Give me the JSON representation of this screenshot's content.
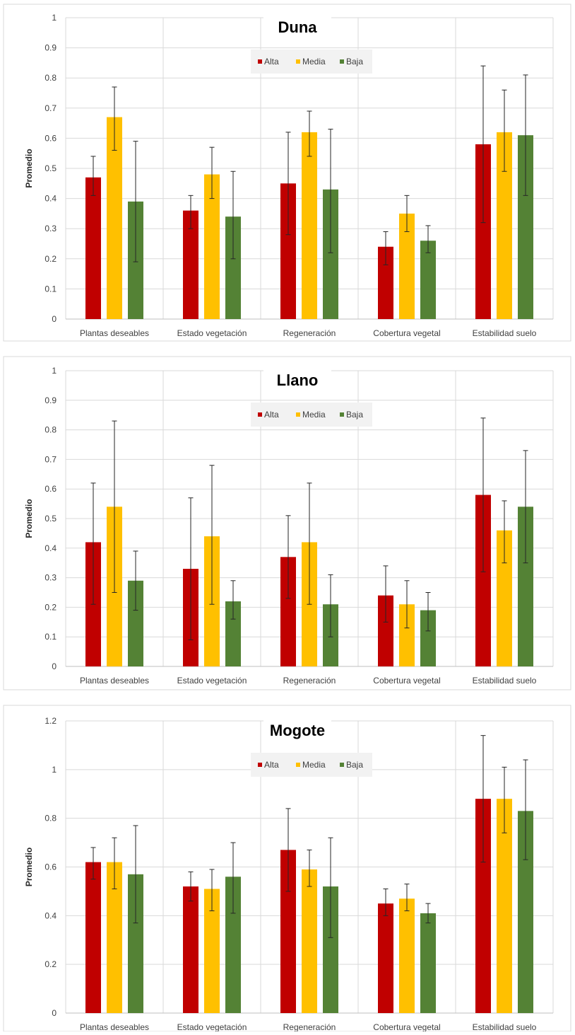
{
  "chart_data": [
    {
      "type": "bar",
      "title": "Duna",
      "ylabel": "Promedio",
      "ylim": [
        0,
        1
      ],
      "yticks": [
        "0",
        "0.1",
        "0.2",
        "0.3",
        "0.4",
        "0.5",
        "0.6",
        "0.7",
        "0.8",
        "0.9",
        "1"
      ],
      "categories": [
        "Plantas deseables",
        "Estado vegetación",
        "Regeneración",
        "Cobertura vegetal",
        "Estabilidad suelo"
      ],
      "grid": true,
      "legend": "top-center",
      "series": [
        {
          "name": "Alta",
          "color": "#c00000",
          "values": [
            0.47,
            0.36,
            0.45,
            0.24,
            0.58
          ],
          "err_low": [
            0.41,
            0.3,
            0.28,
            0.18,
            0.32
          ],
          "err_high": [
            0.54,
            0.41,
            0.62,
            0.29,
            0.84
          ]
        },
        {
          "name": "Media",
          "color": "#ffc000",
          "values": [
            0.67,
            0.48,
            0.62,
            0.35,
            0.62
          ],
          "err_low": [
            0.56,
            0.4,
            0.54,
            0.29,
            0.49
          ],
          "err_high": [
            0.77,
            0.57,
            0.69,
            0.41,
            0.76
          ]
        },
        {
          "name": "Baja",
          "color": "#548235",
          "values": [
            0.39,
            0.34,
            0.43,
            0.26,
            0.61
          ],
          "err_low": [
            0.19,
            0.2,
            0.22,
            0.22,
            0.41
          ],
          "err_high": [
            0.59,
            0.49,
            0.63,
            0.31,
            0.81
          ]
        }
      ]
    },
    {
      "type": "bar",
      "title": "Llano",
      "ylabel": "Promedio",
      "ylim": [
        0,
        1
      ],
      "yticks": [
        "0",
        "0.1",
        "0.2",
        "0.3",
        "0.4",
        "0.5",
        "0.6",
        "0.7",
        "0.8",
        "0.9",
        "1"
      ],
      "categories": [
        "Plantas deseables",
        "Estado vegetación",
        "Regeneración",
        "Cobertura vegetal",
        "Estabilidad suelo"
      ],
      "grid": true,
      "legend": "top-center",
      "series": [
        {
          "name": "Alta",
          "color": "#c00000",
          "values": [
            0.42,
            0.33,
            0.37,
            0.24,
            0.58
          ],
          "err_low": [
            0.21,
            0.09,
            0.23,
            0.15,
            0.32
          ],
          "err_high": [
            0.62,
            0.57,
            0.51,
            0.34,
            0.84
          ]
        },
        {
          "name": "Media",
          "color": "#ffc000",
          "values": [
            0.54,
            0.44,
            0.42,
            0.21,
            0.46
          ],
          "err_low": [
            0.25,
            0.21,
            0.21,
            0.13,
            0.35
          ],
          "err_high": [
            0.83,
            0.68,
            0.62,
            0.29,
            0.56
          ]
        },
        {
          "name": "Baja",
          "color": "#548235",
          "values": [
            0.29,
            0.22,
            0.21,
            0.19,
            0.54
          ],
          "err_low": [
            0.19,
            0.16,
            0.1,
            0.12,
            0.35
          ],
          "err_high": [
            0.39,
            0.29,
            0.31,
            0.25,
            0.73
          ]
        }
      ]
    },
    {
      "type": "bar",
      "title": "Mogote",
      "ylabel": "Promedio",
      "ylim": [
        0,
        1.2
      ],
      "yticks": [
        "0",
        "0.2",
        "0.4",
        "0.6",
        "0.8",
        "1",
        "1.2"
      ],
      "categories": [
        "Plantas deseables",
        "Estado vegetación",
        "Regeneración",
        "Cobertura vegetal",
        "Estabilidad suelo"
      ],
      "grid": true,
      "legend": "top-center",
      "series": [
        {
          "name": "Alta",
          "color": "#c00000",
          "values": [
            0.62,
            0.52,
            0.67,
            0.45,
            0.88
          ],
          "err_low": [
            0.55,
            0.46,
            0.5,
            0.4,
            0.62
          ],
          "err_high": [
            0.68,
            0.58,
            0.84,
            0.51,
            1.14
          ]
        },
        {
          "name": "Media",
          "color": "#ffc000",
          "values": [
            0.62,
            0.51,
            0.59,
            0.47,
            0.88
          ],
          "err_low": [
            0.51,
            0.42,
            0.52,
            0.42,
            0.74
          ],
          "err_high": [
            0.72,
            0.59,
            0.67,
            0.53,
            1.01
          ]
        },
        {
          "name": "Baja",
          "color": "#548235",
          "values": [
            0.57,
            0.56,
            0.52,
            0.41,
            0.83
          ],
          "err_low": [
            0.37,
            0.41,
            0.31,
            0.37,
            0.63
          ],
          "err_high": [
            0.77,
            0.7,
            0.72,
            0.45,
            1.04
          ]
        }
      ]
    }
  ]
}
